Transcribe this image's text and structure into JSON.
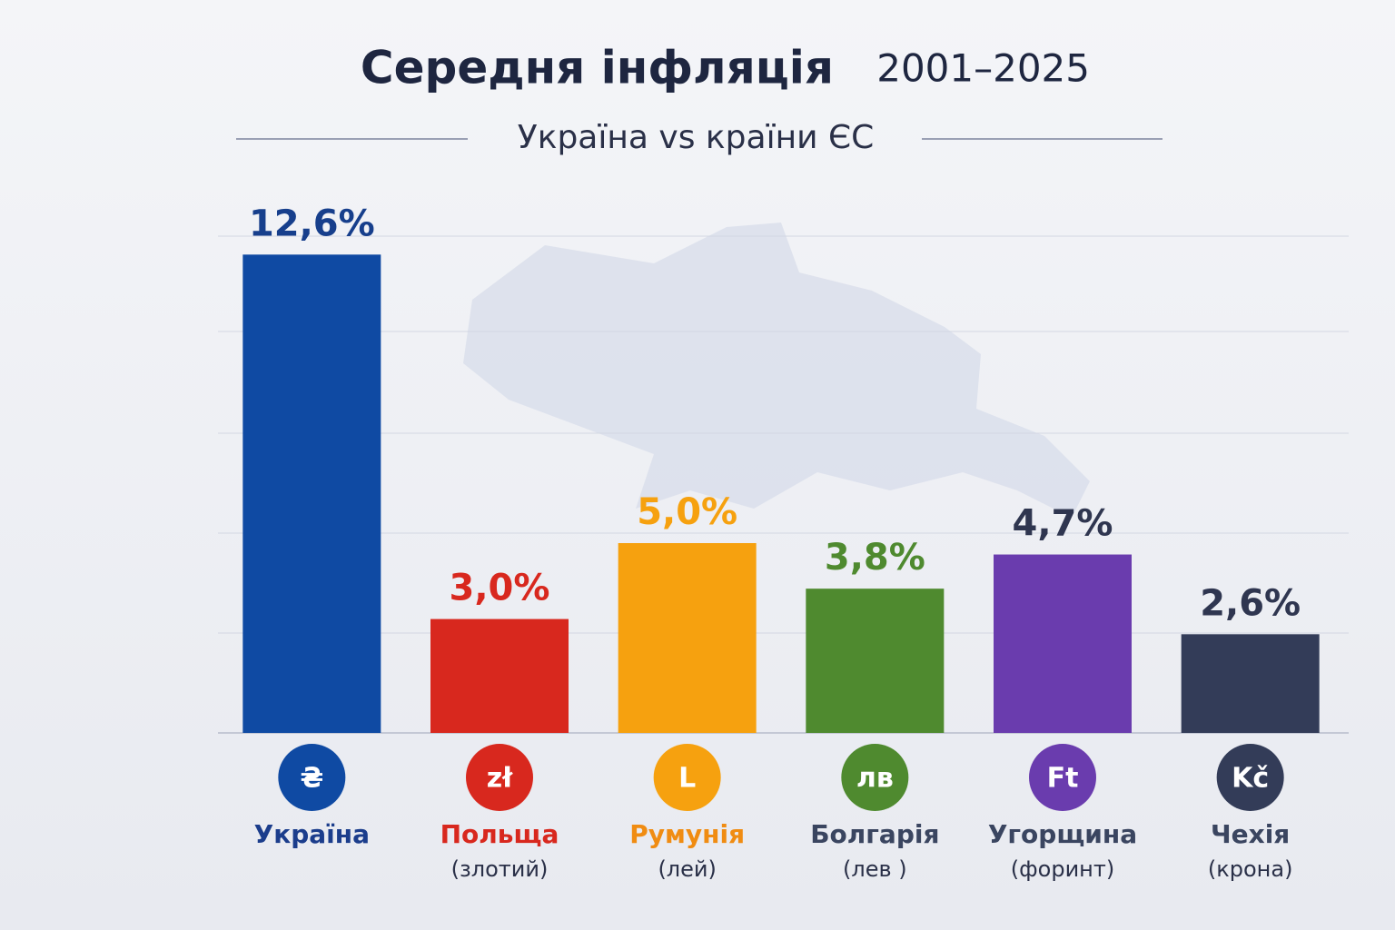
{
  "chart_data": {
    "type": "bar",
    "title": "Середня інфляція",
    "title_years": "2001–2025",
    "subtitle": "Україна vs країни ЄС",
    "categories": [
      "Україна",
      "Польща",
      "Румунія",
      "Болгарія",
      "Угорщина",
      "Чехія"
    ],
    "currency_names": [
      null,
      "(злотий)",
      "(лей)",
      "(лев )",
      "(форинт)",
      "(крона)"
    ],
    "currency_symbols": [
      "₴",
      "zł",
      "L",
      "лв",
      "Ft",
      "Kč"
    ],
    "values": [
      12.6,
      3.0,
      5.0,
      3.8,
      4.7,
      2.6
    ],
    "value_labels": [
      "12,6%",
      "3,0%",
      "5,0%",
      "3,8%",
      "4,7%",
      "2,6%"
    ],
    "colors": [
      "#0f4aa3",
      "#d8281e",
      "#f6a10f",
      "#4f8a2f",
      "#6a3cae",
      "#333c58"
    ],
    "value_label_colors": [
      "#173f8c",
      "#d8281e",
      "#f6a10f",
      "#4f8a2f",
      "#2f3650",
      "#2f3650"
    ],
    "label_colors": [
      "#1b3d8c",
      "#d8281e",
      "#f08c12",
      "#3a4560",
      "#3a4560",
      "#3a4560"
    ],
    "ylim": [
      0,
      15
    ]
  }
}
